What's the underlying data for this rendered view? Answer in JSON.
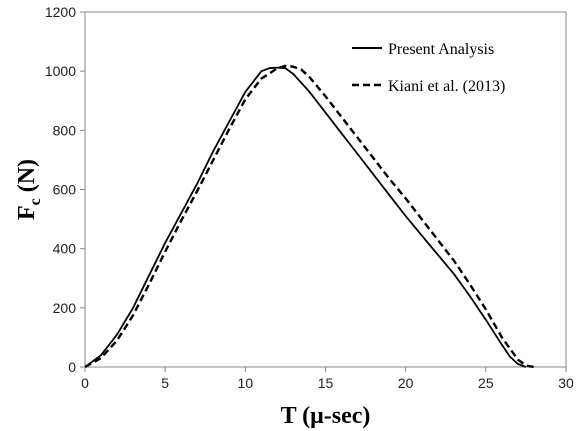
{
  "chart_data": {
    "type": "line",
    "xlabel": "T (μ-sec)",
    "ylabel": {
      "main": "F",
      "sub": "c",
      "rest": " (N)"
    },
    "xlim": [
      0,
      30
    ],
    "ylim": [
      0,
      1200
    ],
    "xticks": [
      0,
      5,
      10,
      15,
      20,
      25,
      30
    ],
    "yticks": [
      0,
      200,
      400,
      600,
      800,
      1000,
      1200
    ],
    "grid": false,
    "legend_position": "top-right",
    "series": [
      {
        "name": "Present Analysis",
        "style": "solid",
        "color": "#000000",
        "x": [
          0,
          1,
          2,
          3,
          4,
          5,
          6,
          7,
          8,
          9,
          10,
          11,
          11.5,
          12,
          12.5,
          13,
          14,
          15,
          16,
          17,
          18,
          19,
          20,
          21,
          22,
          23,
          24,
          25,
          26,
          26.5,
          27,
          27.5
        ],
        "y": [
          0,
          40,
          110,
          200,
          310,
          420,
          520,
          620,
          730,
          830,
          930,
          1000,
          1010,
          1012,
          1010,
          990,
          930,
          860,
          790,
          720,
          650,
          580,
          510,
          445,
          380,
          315,
          240,
          160,
          75,
          35,
          10,
          0
        ]
      },
      {
        "name": "Kiani et al. (2013)",
        "style": "dashed",
        "color": "#000000",
        "x": [
          0,
          1,
          2,
          3,
          4,
          5,
          6,
          7,
          8,
          9,
          10,
          11,
          12,
          12.5,
          13,
          13.5,
          14,
          15,
          16,
          17,
          18,
          19,
          20,
          21,
          22,
          23,
          24,
          25,
          26,
          27,
          27.5,
          28
        ],
        "y": [
          0,
          30,
          90,
          175,
          280,
          390,
          495,
          595,
          700,
          805,
          905,
          975,
          1010,
          1018,
          1015,
          1005,
          980,
          915,
          845,
          775,
          705,
          635,
          570,
          500,
          430,
          360,
          280,
          195,
          100,
          25,
          5,
          0
        ]
      }
    ]
  }
}
